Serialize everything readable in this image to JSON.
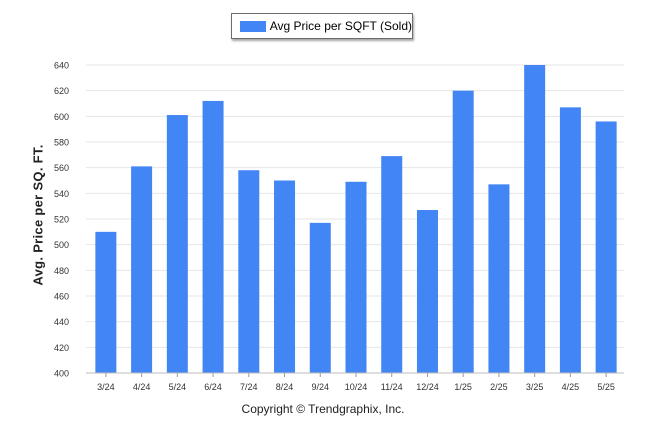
{
  "legend": {
    "label": "Avg Price per SQFT (Sold)"
  },
  "footer": {
    "copyright": "Copyright © Trendgraphix, Inc."
  },
  "chart_data": {
    "type": "bar",
    "title": "",
    "xlabel": "",
    "ylabel": "Avg. Price per SQ. FT.",
    "categories": [
      "3/24",
      "4/24",
      "5/24",
      "6/24",
      "7/24",
      "8/24",
      "9/24",
      "10/24",
      "11/24",
      "12/24",
      "1/25",
      "2/25",
      "3/25",
      "4/25",
      "5/25"
    ],
    "series": [
      {
        "name": "Avg Price per SQFT (Sold)",
        "values": [
          510,
          561,
          601,
          612,
          558,
          550,
          517,
          549,
          569,
          527,
          620,
          547,
          640,
          607,
          596
        ],
        "color": "#4285f4"
      }
    ],
    "ylim": [
      400,
      640
    ],
    "yticks": [
      400,
      420,
      440,
      460,
      480,
      500,
      520,
      540,
      560,
      580,
      600,
      620,
      640
    ],
    "grid": true,
    "legend_position": "top-center"
  }
}
